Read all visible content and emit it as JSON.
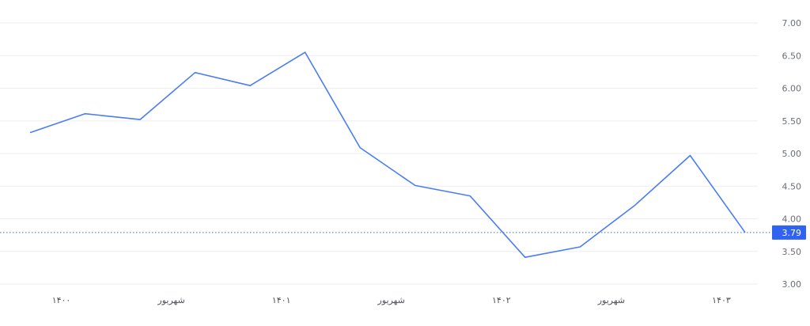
{
  "chart_data": {
    "type": "line",
    "x": [
      1,
      2,
      3,
      4,
      5,
      6,
      7,
      8,
      9,
      10,
      11,
      12,
      13,
      14
    ],
    "values": [
      5.32,
      5.61,
      5.52,
      6.24,
      6.04,
      6.55,
      5.09,
      4.51,
      4.35,
      3.41,
      3.57,
      4.21,
      4.97,
      3.79
    ],
    "ylim": [
      3.0,
      7.0
    ],
    "y_ticks": [
      "7.00",
      "6.50",
      "6.00",
      "5.50",
      "5.00",
      "4.50",
      "4.00",
      "3.50",
      "3.00"
    ],
    "x_tick_labels": [
      {
        "label": "۱۴۰۰",
        "at": 2
      },
      {
        "label": "شهریور",
        "at": 4
      },
      {
        "label": "۱۴۰۱",
        "at": 6
      },
      {
        "label": "شهریور",
        "at": 8
      },
      {
        "label": "۱۴۰۲",
        "at": 10
      },
      {
        "label": "شهریور",
        "at": 12
      },
      {
        "label": "۱۴۰۳",
        "at": 14
      }
    ],
    "last_value_label": "3.79",
    "grid": true,
    "y_axis_side": "right",
    "title": "",
    "xlabel": "",
    "ylabel": "",
    "colors": {
      "line": "#4a7cf3",
      "badge": "#2f63f0",
      "reference": "#3d6fe0"
    }
  }
}
